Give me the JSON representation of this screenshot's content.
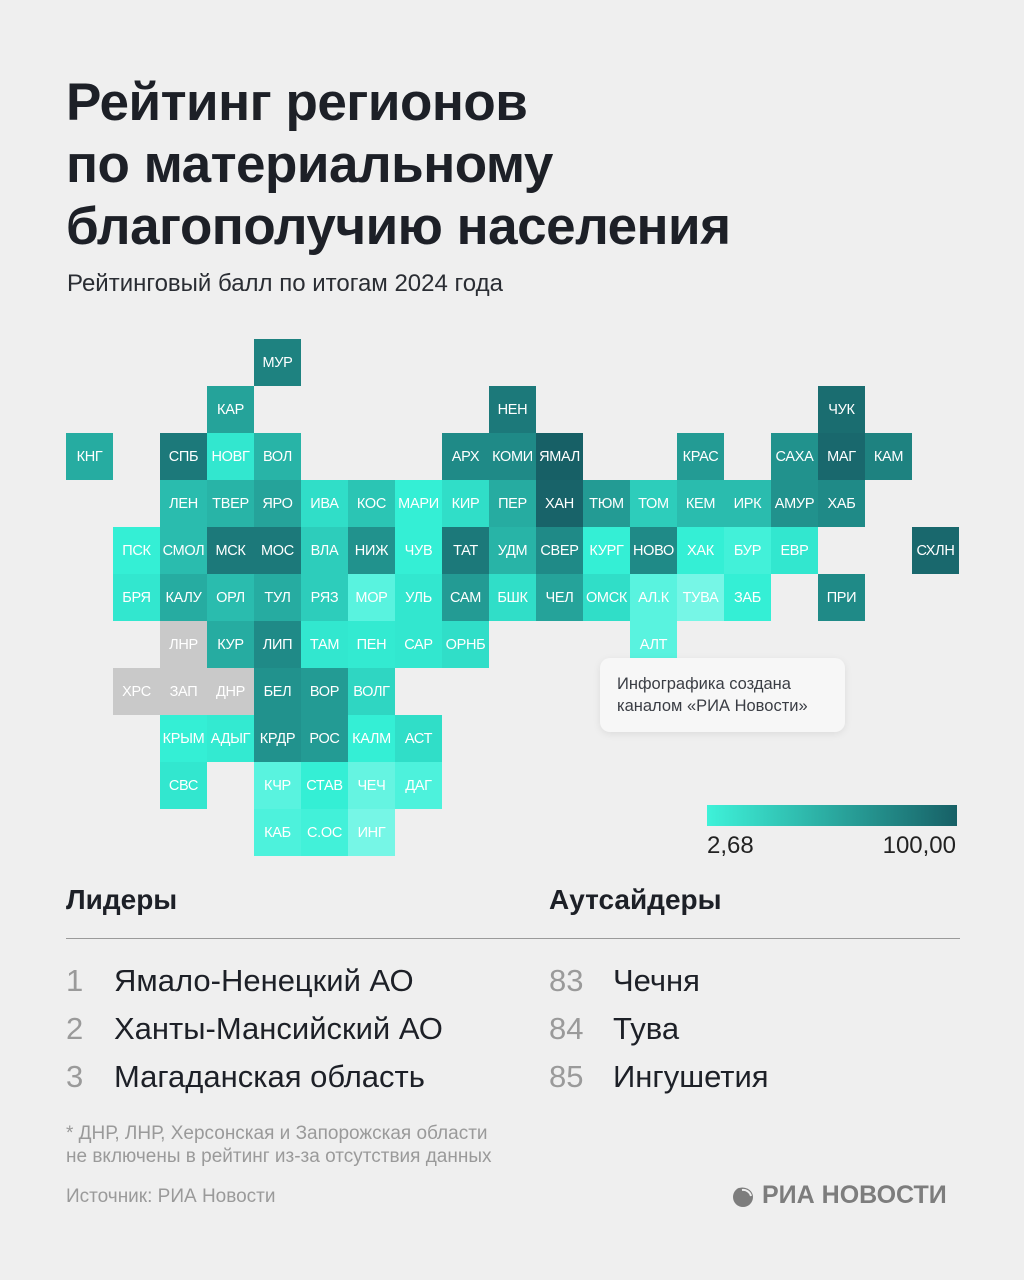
{
  "title_lines": [
    "Рейтинг регионов",
    "по материальному",
    "благополучию населения"
  ],
  "subtitle": "Рейтинговый балл по итогам 2024 года",
  "chart_data": {
    "type": "heatmap",
    "subtype": "tile-map",
    "title": "Рейтинг регионов по материальному благополучию населения",
    "subtitle": "Рейтинговый балл по итогам 2024 года",
    "color_scale": {
      "min": 2.68,
      "max": 100.0,
      "min_label": "2,68",
      "max_label": "100,00",
      "min_color": "#3ef2d9",
      "max_color": "#176066",
      "no_data_color": "#c9c9c9"
    },
    "tiles": [
      {
        "label": "МУР",
        "value": 80
      },
      {
        "label": "КАР",
        "value": 60
      },
      {
        "label": "НЕН",
        "value": 85
      },
      {
        "label": "ЧУК",
        "value": 92
      },
      {
        "label": "КНГ",
        "value": 55
      },
      {
        "label": "СПБ",
        "value": 85
      },
      {
        "label": "НОВГ",
        "value": 20
      },
      {
        "label": "ВОЛ",
        "value": 50
      },
      {
        "label": "АРХ",
        "value": 75
      },
      {
        "label": "КОМИ",
        "value": 75
      },
      {
        "label": "ЯМАЛ",
        "value": 100
      },
      {
        "label": "КРАС",
        "value": 65
      },
      {
        "label": "САХА",
        "value": 70
      },
      {
        "label": "МАГ",
        "value": 95
      },
      {
        "label": "КАМ",
        "value": 80
      },
      {
        "label": "ЛЕН",
        "value": 45
      },
      {
        "label": "ТВЕР",
        "value": 50
      },
      {
        "label": "ЯРО",
        "value": 60
      },
      {
        "label": "ИВА",
        "value": 25
      },
      {
        "label": "КОС",
        "value": 40
      },
      {
        "label": "МАРИ",
        "value": 15
      },
      {
        "label": "КИР",
        "value": 25
      },
      {
        "label": "ПЕР",
        "value": 55
      },
      {
        "label": "ХАН",
        "value": 98
      },
      {
        "label": "ТЮМ",
        "value": 65
      },
      {
        "label": "ТОМ",
        "value": 35
      },
      {
        "label": "КЕМ",
        "value": 45
      },
      {
        "label": "ИРК",
        "value": 45
      },
      {
        "label": "АМУР",
        "value": 70
      },
      {
        "label": "ХАБ",
        "value": 75
      },
      {
        "label": "ПСК",
        "value": 15
      },
      {
        "label": "СМОЛ",
        "value": 45
      },
      {
        "label": "МСК",
        "value": 85
      },
      {
        "label": "МОС",
        "value": 85
      },
      {
        "label": "ВЛА",
        "value": 35
      },
      {
        "label": "НИЖ",
        "value": 70
      },
      {
        "label": "ЧУВ",
        "value": 15
      },
      {
        "label": "ТАТ",
        "value": 85
      },
      {
        "label": "УДМ",
        "value": 50
      },
      {
        "label": "СВЕР",
        "value": 75
      },
      {
        "label": "КУРГ",
        "value": 15
      },
      {
        "label": "НОВО",
        "value": 75
      },
      {
        "label": "ХАК",
        "value": 15
      },
      {
        "label": "БУР",
        "value": 12
      },
      {
        "label": "ЕВР",
        "value": 20
      },
      {
        "label": "СХЛН",
        "value": 95
      },
      {
        "label": "БРЯ",
        "value": 20
      },
      {
        "label": "КАЛУ",
        "value": 55
      },
      {
        "label": "ОРЛ",
        "value": 45
      },
      {
        "label": "ТУЛ",
        "value": 55
      },
      {
        "label": "РЯЗ",
        "value": 35
      },
      {
        "label": "МОР",
        "value": 8
      },
      {
        "label": "УЛЬ",
        "value": 20
      },
      {
        "label": "САМ",
        "value": 65
      },
      {
        "label": "БШК",
        "value": 25
      },
      {
        "label": "ЧЕЛ",
        "value": 60
      },
      {
        "label": "ОМСК",
        "value": 25
      },
      {
        "label": "АЛ.К",
        "value": 8
      },
      {
        "label": "ТУВА",
        "value": 3
      },
      {
        "label": "ЗАБ",
        "value": 15
      },
      {
        "label": "ПРИ",
        "value": 75
      },
      {
        "label": "ЛНР",
        "value": null
      },
      {
        "label": "КУР",
        "value": 55
      },
      {
        "label": "ЛИП",
        "value": 75
      },
      {
        "label": "ТАМ",
        "value": 20
      },
      {
        "label": "ПЕН",
        "value": 18
      },
      {
        "label": "САР",
        "value": 20
      },
      {
        "label": "ОРНБ",
        "value": 25
      },
      {
        "label": "АЛТ",
        "value": 8
      },
      {
        "label": "ХРС",
        "value": null
      },
      {
        "label": "ЗАП",
        "value": null
      },
      {
        "label": "ДНР",
        "value": null
      },
      {
        "label": "БЕЛ",
        "value": 70
      },
      {
        "label": "ВОР",
        "value": 65
      },
      {
        "label": "ВОЛГ",
        "value": 30
      },
      {
        "label": "КРЫМ",
        "value": 15
      },
      {
        "label": "АДЫГ",
        "value": 18
      },
      {
        "label": "КРДР",
        "value": 70
      },
      {
        "label": "РОС",
        "value": 65
      },
      {
        "label": "КАЛМ",
        "value": 15
      },
      {
        "label": "АСТ",
        "value": 25
      },
      {
        "label": "СВС",
        "value": 20
      },
      {
        "label": "КЧР",
        "value": 8
      },
      {
        "label": "СТАВ",
        "value": 15
      },
      {
        "label": "ЧЕЧ",
        "value": 6
      },
      {
        "label": "ДАГ",
        "value": 10
      },
      {
        "label": "КАБ",
        "value": 10
      },
      {
        "label": "С.ОС",
        "value": 12
      },
      {
        "label": "ИНГ",
        "value": 3
      }
    ]
  },
  "note": [
    "Инфографика создана",
    "каналом «РИА Новости»"
  ],
  "leaders": {
    "heading": "Лидеры",
    "items": [
      {
        "rank": "1",
        "name": "Ямало-Ненецкий АО"
      },
      {
        "rank": "2",
        "name": "Ханты-Мансийский АО"
      },
      {
        "rank": "3",
        "name": "Магаданская область"
      }
    ]
  },
  "outsiders": {
    "heading": "Аутсайдеры",
    "items": [
      {
        "rank": "83",
        "name": "Чечня"
      },
      {
        "rank": "84",
        "name": "Тува"
      },
      {
        "rank": "85",
        "name": "Ингушетия"
      }
    ]
  },
  "footnote": [
    "* ДНР, ЛНР, Херсонская и Запорожская области",
    "не включены в рейтинг из-за отсутствия данных"
  ],
  "source": "Источник: РИА Новости",
  "logo_text": "РИА НОВОСТИ"
}
